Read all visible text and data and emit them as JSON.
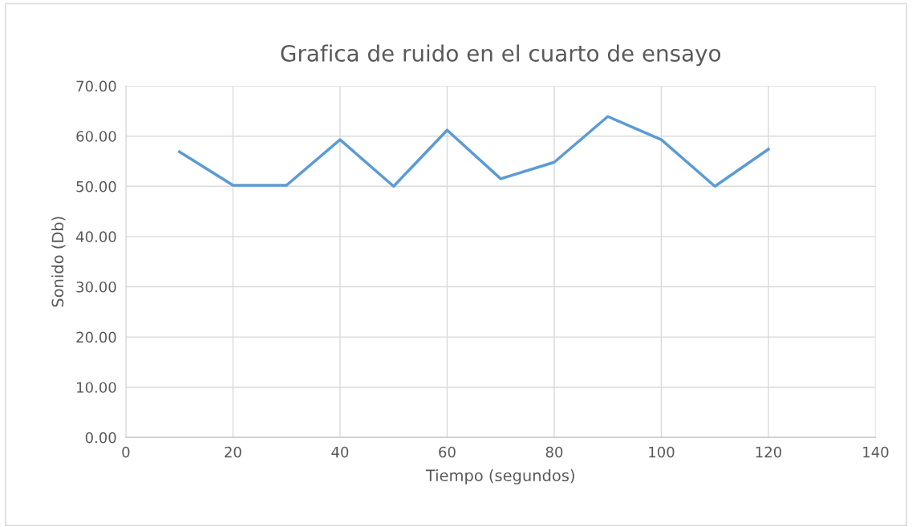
{
  "chart_data": {
    "type": "line",
    "title": "Grafica de ruido en el cuarto de ensayo",
    "xlabel": "Tiempo (segundos)",
    "ylabel": "Sonido (Db)",
    "x": [
      10,
      20,
      30,
      40,
      50,
      60,
      70,
      80,
      90,
      100,
      110,
      120
    ],
    "series": [
      {
        "color": "#5b9bd5",
        "values": [
          56.9,
          50.2,
          50.2,
          59.3,
          50.0,
          61.2,
          51.5,
          54.8,
          63.9,
          59.3,
          50.0,
          57.4
        ]
      }
    ],
    "xlim": [
      0,
      140
    ],
    "xticks": [
      0,
      20,
      40,
      60,
      80,
      100,
      120,
      140
    ],
    "ylim": [
      0,
      70
    ],
    "yticks": [
      {
        "value": 0,
        "label": "0.00"
      },
      {
        "value": 10,
        "label": "10.00"
      },
      {
        "value": 20,
        "label": "20.00"
      },
      {
        "value": 30,
        "label": "30.00"
      },
      {
        "value": 40,
        "label": "40.00"
      },
      {
        "value": 50,
        "label": "50.00"
      },
      {
        "value": 60,
        "label": "60.00"
      },
      {
        "value": 70,
        "label": "70.00"
      }
    ],
    "grid": true,
    "marker": "none",
    "line_style": "solid",
    "legend": false
  }
}
